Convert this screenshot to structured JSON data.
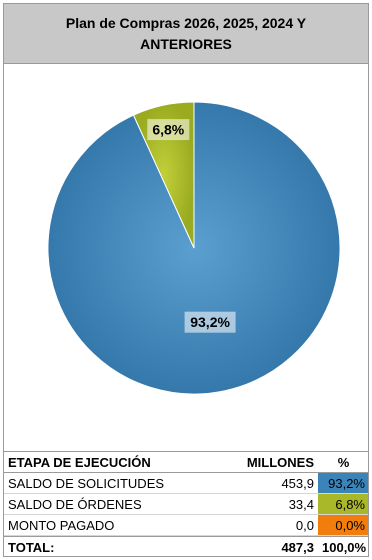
{
  "chart_data": {
    "type": "pie",
    "title": "Plan de Compras 2026, 2025, 2024 Y ANTERIORES",
    "slices": [
      {
        "label": "SALDO DE SOLICITUDES",
        "value": 93.2,
        "display": "93,2%",
        "color": "#3b84b9"
      },
      {
        "label": "SALDO DE ÓRDENES",
        "value": 6.8,
        "display": "6,8%",
        "color": "#a8b828"
      },
      {
        "label": "MONTO PAGADO",
        "value": 0.0,
        "display": "0,0%",
        "color": "#f07d0c"
      }
    ]
  },
  "table": {
    "headers": {
      "stage": "ETAPA DE EJECUCIÓN",
      "millions": "MILLONES",
      "pct": "%"
    },
    "rows": [
      {
        "stage": "SALDO DE SOLICITUDES",
        "millions": "453,9",
        "pct": "93,2%",
        "color": "#3b84b9"
      },
      {
        "stage": "SALDO DE ÓRDENES",
        "millions": "33,4",
        "pct": "6,8%",
        "color": "#a8b828"
      },
      {
        "stage": "MONTO PAGADO",
        "millions": "0,0",
        "pct": "0,0%",
        "color": "#f07d0c"
      }
    ],
    "total": {
      "label": "TOTAL:",
      "millions": "487,3",
      "pct": "100,0%"
    }
  }
}
